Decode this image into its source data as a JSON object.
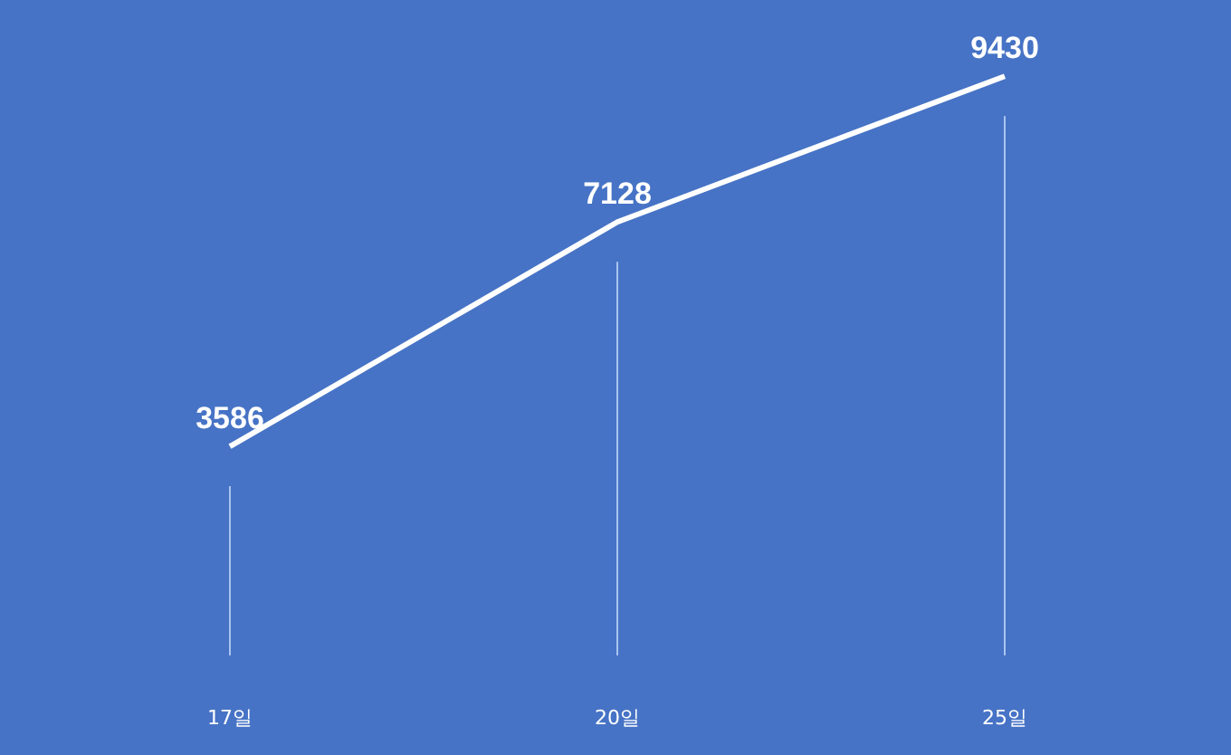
{
  "chart_data": {
    "type": "line",
    "categories": [
      "17일",
      "20일",
      "25일"
    ],
    "values": [
      3586,
      7128,
      9430
    ],
    "color": "#ffffff",
    "data_labels": true,
    "tick_labels": "x",
    "line_style": "solid"
  }
}
